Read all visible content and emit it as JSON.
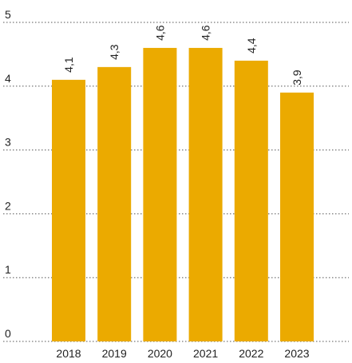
{
  "chart_data": {
    "type": "bar",
    "title": "",
    "xlabel": "",
    "ylabel": "",
    "categories": [
      "2018",
      "2019",
      "2020",
      "2021",
      "2022",
      "2023"
    ],
    "values": [
      4.1,
      4.3,
      4.6,
      4.6,
      4.4,
      3.9
    ],
    "data_labels": [
      "4,1",
      "4,3",
      "4,6",
      "4,6",
      "4,4",
      "3,9"
    ],
    "ylim": [
      0,
      5
    ],
    "yticks": [
      "0",
      "1",
      "2",
      "3",
      "4",
      "5"
    ],
    "grid": true,
    "bar_color": "#EBAA00"
  }
}
